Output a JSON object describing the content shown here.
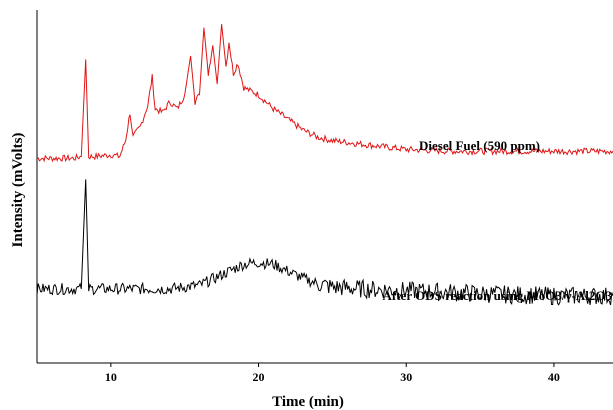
{
  "chart_data": {
    "type": "line",
    "title": "",
    "xlabel": "Time (min)",
    "ylabel": "Intensity (mVolts)",
    "xlim": [
      5,
      44
    ],
    "x_ticks": [
      10,
      20,
      30,
      40
    ],
    "ylim": [
      0,
      100
    ],
    "grid": false,
    "legend": "none",
    "series": [
      {
        "name": "Diesel Fuel (590 ppm)",
        "color": "#e01515",
        "points": [
          [
            5.0,
            58.0
          ],
          [
            7.5,
            58.0
          ],
          [
            8.0,
            58.5
          ],
          [
            8.3,
            86.0
          ],
          [
            8.5,
            58.5
          ],
          [
            9.0,
            58.5
          ],
          [
            10.0,
            59.0
          ],
          [
            10.6,
            58.5
          ],
          [
            11.0,
            63.0
          ],
          [
            11.3,
            71.0
          ],
          [
            11.5,
            64.0
          ],
          [
            12.0,
            67.0
          ],
          [
            12.5,
            73.0
          ],
          [
            12.8,
            81.0
          ],
          [
            13.0,
            72.0
          ],
          [
            13.5,
            71.0
          ],
          [
            14.0,
            74.0
          ],
          [
            14.5,
            72.0
          ],
          [
            15.0,
            76.0
          ],
          [
            15.4,
            87.0
          ],
          [
            15.7,
            74.0
          ],
          [
            16.0,
            76.0
          ],
          [
            16.3,
            95.0
          ],
          [
            16.6,
            82.0
          ],
          [
            16.9,
            90.0
          ],
          [
            17.2,
            79.0
          ],
          [
            17.5,
            96.0
          ],
          [
            17.8,
            84.0
          ],
          [
            18.0,
            91.0
          ],
          [
            18.3,
            82.0
          ],
          [
            18.6,
            85.0
          ],
          [
            19.0,
            78.0
          ],
          [
            19.5,
            77.0
          ],
          [
            20.0,
            76.0
          ],
          [
            21.0,
            72.0
          ],
          [
            22.0,
            69.0
          ],
          [
            23.0,
            66.0
          ],
          [
            24.0,
            64.0
          ],
          [
            25.0,
            63.0
          ],
          [
            27.0,
            62.0
          ],
          [
            30.0,
            60.5
          ],
          [
            33.0,
            60.0
          ],
          [
            36.0,
            60.0
          ],
          [
            40.0,
            60.0
          ],
          [
            44.0,
            60.0
          ]
        ]
      },
      {
        "name": "After ODS reaction using MoO3/γ-Al2O3",
        "color": "#000000",
        "points": [
          [
            5.0,
            21.0
          ],
          [
            7.5,
            21.0
          ],
          [
            8.0,
            21.0
          ],
          [
            8.3,
            52.0
          ],
          [
            8.5,
            21.0
          ],
          [
            10.0,
            21.0
          ],
          [
            12.0,
            21.0
          ],
          [
            14.0,
            21.0
          ],
          [
            16.0,
            22.0
          ],
          [
            17.0,
            24.0
          ],
          [
            18.0,
            26.0
          ],
          [
            19.0,
            28.0
          ],
          [
            20.0,
            28.5
          ],
          [
            21.0,
            28.0
          ],
          [
            22.0,
            26.0
          ],
          [
            23.0,
            24.0
          ],
          [
            24.0,
            22.5
          ],
          [
            25.0,
            21.5
          ],
          [
            27.0,
            21.0
          ],
          [
            30.0,
            20.5
          ],
          [
            33.0,
            20.0
          ],
          [
            36.0,
            19.5
          ],
          [
            40.0,
            19.0
          ],
          [
            44.0,
            19.0
          ]
        ]
      }
    ],
    "annotations": [
      {
        "text": "Diesel Fuel (590 ppm)",
        "series": 0
      },
      {
        "text": "After ODS reaction using MoO3/γ-Al2O3",
        "series": 1
      }
    ]
  }
}
